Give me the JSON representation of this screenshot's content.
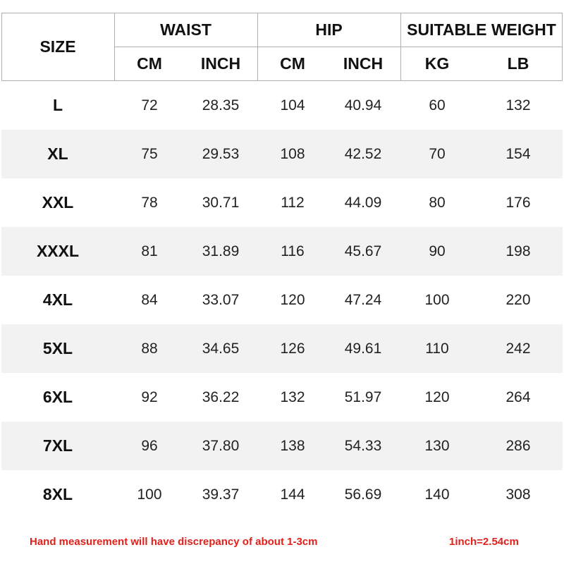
{
  "table": {
    "group_headers": [
      "SIZE",
      "WAIST",
      "HIP",
      "SUITABLE WEIGHT"
    ],
    "sub_headers": [
      "CM",
      "INCH",
      "CM",
      "INCH",
      "KG",
      "LB"
    ],
    "rows": [
      [
        "L",
        "72",
        "28.35",
        "104",
        "40.94",
        "60",
        "132"
      ],
      [
        "XL",
        "75",
        "29.53",
        "108",
        "42.52",
        "70",
        "154"
      ],
      [
        "XXL",
        "78",
        "30.71",
        "112",
        "44.09",
        "80",
        "176"
      ],
      [
        "XXXL",
        "81",
        "31.89",
        "116",
        "45.67",
        "90",
        "198"
      ],
      [
        "4XL",
        "84",
        "33.07",
        "120",
        "47.24",
        "100",
        "220"
      ],
      [
        "5XL",
        "88",
        "34.65",
        "126",
        "49.61",
        "110",
        "242"
      ],
      [
        "6XL",
        "92",
        "36.22",
        "132",
        "51.97",
        "120",
        "264"
      ],
      [
        "7XL",
        "96",
        "37.80",
        "138",
        "54.33",
        "130",
        "286"
      ],
      [
        "8XL",
        "100",
        "39.37",
        "144",
        "56.69",
        "140",
        "308"
      ]
    ]
  },
  "footer": {
    "note": "Hand measurement will have discrepancy of about 1-3cm",
    "conversion": "1inch=2.54cm"
  }
}
